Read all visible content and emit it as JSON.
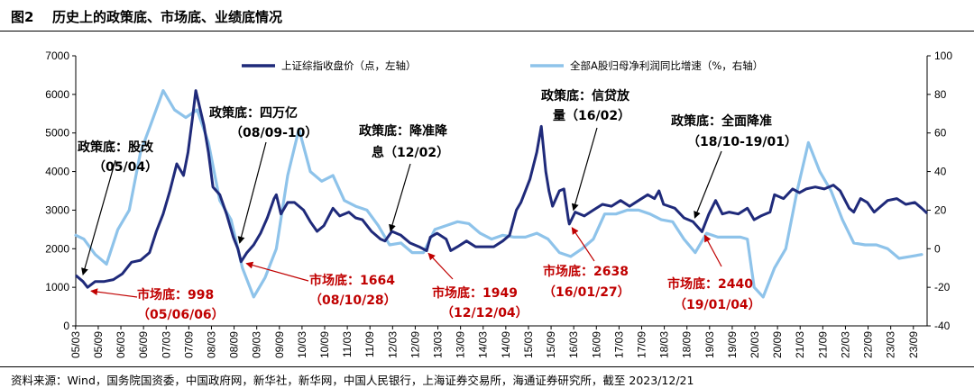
{
  "header": {
    "figure_label": "图2",
    "title": "历史上的政策底、市场底、业绩底情况"
  },
  "footer": {
    "source": "资料来源：Wind，国务院国资委，中国政府网，新华社，新华网，中国人民银行，上海证券交易所，海通证券研究所，截至 2023/12/21"
  },
  "colors": {
    "index_line": "#1f2a7a",
    "profit_line": "#8ec3ea",
    "policy_text": "#000000",
    "market_text": "#c00000"
  },
  "chart_data": {
    "type": "line",
    "left_axis": {
      "min": 0,
      "max": 7000,
      "ticks": [
        "0",
        "1000",
        "2000",
        "3000",
        "4000",
        "5000",
        "6000",
        "7000"
      ]
    },
    "right_axis": {
      "min": -40,
      "max": 100,
      "ticks": [
        "-40",
        "-20",
        "0",
        "20",
        "40",
        "60",
        "80",
        "100"
      ]
    },
    "x_ticks": [
      "05/03",
      "05/09",
      "06/03",
      "06/09",
      "07/03",
      "07/09",
      "08/03",
      "08/09",
      "09/03",
      "09/09",
      "10/03",
      "10/09",
      "11/03",
      "11/09",
      "12/03",
      "12/09",
      "13/03",
      "13/09",
      "14/03",
      "14/09",
      "15/03",
      "15/09",
      "16/03",
      "16/09",
      "17/03",
      "17/09",
      "18/03",
      "18/09",
      "19/03",
      "19/09",
      "20/03",
      "20/09",
      "21/03",
      "21/09",
      "22/03",
      "22/09",
      "23/03",
      "23/09"
    ],
    "x_start": 2005.17,
    "x_end": 2023.97,
    "series": [
      {
        "name": "上证综指收盘价（点，左轴）",
        "axis": "left",
        "points": [
          [
            2005.17,
            1310
          ],
          [
            2005.33,
            1150
          ],
          [
            2005.43,
            998
          ],
          [
            2005.6,
            1150
          ],
          [
            2005.8,
            1150
          ],
          [
            2006.0,
            1200
          ],
          [
            2006.2,
            1350
          ],
          [
            2006.4,
            1650
          ],
          [
            2006.6,
            1700
          ],
          [
            2006.8,
            1900
          ],
          [
            2006.95,
            2450
          ],
          [
            2007.1,
            2900
          ],
          [
            2007.25,
            3500
          ],
          [
            2007.4,
            4200
          ],
          [
            2007.55,
            3900
          ],
          [
            2007.65,
            4500
          ],
          [
            2007.75,
            5400
          ],
          [
            2007.82,
            6100
          ],
          [
            2007.92,
            5600
          ],
          [
            2008.0,
            5200
          ],
          [
            2008.1,
            4500
          ],
          [
            2008.2,
            3600
          ],
          [
            2008.35,
            3400
          ],
          [
            2008.5,
            2900
          ],
          [
            2008.65,
            2300
          ],
          [
            2008.75,
            2000
          ],
          [
            2008.82,
            1664
          ],
          [
            2008.95,
            1900
          ],
          [
            2009.1,
            2100
          ],
          [
            2009.25,
            2400
          ],
          [
            2009.4,
            2800
          ],
          [
            2009.55,
            3300
          ],
          [
            2009.6,
            3400
          ],
          [
            2009.7,
            2900
          ],
          [
            2009.85,
            3200
          ],
          [
            2010.0,
            3200
          ],
          [
            2010.2,
            3000
          ],
          [
            2010.35,
            2700
          ],
          [
            2010.5,
            2450
          ],
          [
            2010.65,
            2600
          ],
          [
            2010.85,
            3050
          ],
          [
            2011.0,
            2850
          ],
          [
            2011.2,
            2950
          ],
          [
            2011.35,
            2800
          ],
          [
            2011.5,
            2750
          ],
          [
            2011.7,
            2450
          ],
          [
            2011.9,
            2250
          ],
          [
            2012.0,
            2200
          ],
          [
            2012.15,
            2450
          ],
          [
            2012.35,
            2350
          ],
          [
            2012.55,
            2150
          ],
          [
            2012.75,
            2050
          ],
          [
            2012.92,
            1949
          ],
          [
            2013.0,
            2300
          ],
          [
            2013.15,
            2400
          ],
          [
            2013.35,
            2250
          ],
          [
            2013.45,
            1950
          ],
          [
            2013.6,
            2050
          ],
          [
            2013.8,
            2200
          ],
          [
            2014.0,
            2050
          ],
          [
            2014.2,
            2050
          ],
          [
            2014.4,
            2050
          ],
          [
            2014.6,
            2200
          ],
          [
            2014.75,
            2350
          ],
          [
            2014.9,
            3000
          ],
          [
            2015.0,
            3200
          ],
          [
            2015.2,
            3800
          ],
          [
            2015.35,
            4500
          ],
          [
            2015.45,
            5170
          ],
          [
            2015.55,
            4000
          ],
          [
            2015.62,
            3500
          ],
          [
            2015.7,
            3100
          ],
          [
            2015.85,
            3500
          ],
          [
            2015.95,
            3550
          ],
          [
            2016.05,
            2750
          ],
          [
            2016.07,
            2638
          ],
          [
            2016.2,
            2950
          ],
          [
            2016.4,
            2850
          ],
          [
            2016.6,
            3000
          ],
          [
            2016.8,
            3150
          ],
          [
            2017.0,
            3100
          ],
          [
            2017.2,
            3250
          ],
          [
            2017.4,
            3100
          ],
          [
            2017.6,
            3250
          ],
          [
            2017.8,
            3400
          ],
          [
            2017.95,
            3300
          ],
          [
            2018.05,
            3500
          ],
          [
            2018.15,
            3150
          ],
          [
            2018.4,
            3050
          ],
          [
            2018.6,
            2800
          ],
          [
            2018.8,
            2700
          ],
          [
            2019.0,
            2440
          ],
          [
            2019.15,
            2900
          ],
          [
            2019.3,
            3250
          ],
          [
            2019.45,
            2900
          ],
          [
            2019.6,
            2950
          ],
          [
            2019.8,
            2900
          ],
          [
            2020.0,
            3050
          ],
          [
            2020.15,
            2750
          ],
          [
            2020.3,
            2850
          ],
          [
            2020.5,
            2950
          ],
          [
            2020.6,
            3400
          ],
          [
            2020.8,
            3300
          ],
          [
            2021.0,
            3550
          ],
          [
            2021.15,
            3450
          ],
          [
            2021.3,
            3550
          ],
          [
            2021.5,
            3600
          ],
          [
            2021.7,
            3550
          ],
          [
            2021.9,
            3650
          ],
          [
            2022.05,
            3500
          ],
          [
            2022.25,
            3050
          ],
          [
            2022.35,
            2950
          ],
          [
            2022.5,
            3300
          ],
          [
            2022.65,
            3200
          ],
          [
            2022.8,
            2950
          ],
          [
            2022.95,
            3100
          ],
          [
            2023.1,
            3250
          ],
          [
            2023.3,
            3300
          ],
          [
            2023.5,
            3150
          ],
          [
            2023.7,
            3200
          ],
          [
            2023.85,
            3050
          ],
          [
            2023.97,
            2920
          ]
        ]
      },
      {
        "name": "全部A股归母净利润同比增速（%，右轴）",
        "axis": "right",
        "points": [
          [
            2005.17,
            7
          ],
          [
            2005.35,
            5
          ],
          [
            2005.6,
            -3
          ],
          [
            2005.85,
            -8
          ],
          [
            2006.1,
            10
          ],
          [
            2006.35,
            20
          ],
          [
            2006.6,
            50
          ],
          [
            2006.85,
            66
          ],
          [
            2007.1,
            82
          ],
          [
            2007.35,
            72
          ],
          [
            2007.6,
            68
          ],
          [
            2007.85,
            72
          ],
          [
            2008.1,
            55
          ],
          [
            2008.35,
            25
          ],
          [
            2008.6,
            15
          ],
          [
            2008.85,
            -10
          ],
          [
            2009.1,
            -25
          ],
          [
            2009.35,
            -15
          ],
          [
            2009.6,
            0
          ],
          [
            2009.85,
            38
          ],
          [
            2010.1,
            62
          ],
          [
            2010.35,
            40
          ],
          [
            2010.6,
            35
          ],
          [
            2010.85,
            38
          ],
          [
            2011.1,
            25
          ],
          [
            2011.35,
            22
          ],
          [
            2011.6,
            20
          ],
          [
            2011.85,
            12
          ],
          [
            2012.1,
            2
          ],
          [
            2012.35,
            3
          ],
          [
            2012.6,
            -2
          ],
          [
            2012.85,
            -2
          ],
          [
            2013.1,
            10
          ],
          [
            2013.35,
            12
          ],
          [
            2013.6,
            14
          ],
          [
            2013.85,
            13
          ],
          [
            2014.1,
            8
          ],
          [
            2014.35,
            5
          ],
          [
            2014.6,
            7
          ],
          [
            2014.85,
            6
          ],
          [
            2015.1,
            6
          ],
          [
            2015.35,
            8
          ],
          [
            2015.6,
            5
          ],
          [
            2015.85,
            -2
          ],
          [
            2016.1,
            -4
          ],
          [
            2016.35,
            0
          ],
          [
            2016.6,
            5
          ],
          [
            2016.85,
            18
          ],
          [
            2017.1,
            18
          ],
          [
            2017.35,
            20
          ],
          [
            2017.6,
            20
          ],
          [
            2017.85,
            18
          ],
          [
            2018.1,
            15
          ],
          [
            2018.35,
            14
          ],
          [
            2018.6,
            5
          ],
          [
            2018.85,
            -2
          ],
          [
            2019.1,
            8
          ],
          [
            2019.35,
            6
          ],
          [
            2019.6,
            6
          ],
          [
            2019.85,
            6
          ],
          [
            2020.0,
            5
          ],
          [
            2020.15,
            -20
          ],
          [
            2020.35,
            -25
          ],
          [
            2020.6,
            -10
          ],
          [
            2020.85,
            0
          ],
          [
            2021.1,
            30
          ],
          [
            2021.35,
            55
          ],
          [
            2021.6,
            40
          ],
          [
            2021.85,
            30
          ],
          [
            2022.1,
            15
          ],
          [
            2022.35,
            3
          ],
          [
            2022.6,
            2
          ],
          [
            2022.85,
            2
          ],
          [
            2023.1,
            0
          ],
          [
            2023.35,
            -5
          ],
          [
            2023.6,
            -4
          ],
          [
            2023.85,
            -3
          ]
        ]
      }
    ],
    "legend": {
      "placement": "top"
    },
    "policy_bottoms": [
      {
        "label_lines": [
          "政策底：股改",
          "（05/04）"
        ],
        "x": 2005.33
      },
      {
        "label_lines": [
          "政策底：四万亿",
          "（08/09-10）"
        ],
        "x": 2008.75
      },
      {
        "label_lines": [
          "政策底：降准降",
          "息（12/02）"
        ],
        "x": 2012.12
      },
      {
        "label_lines": [
          "政策底：信贷放",
          "量（16/02）"
        ],
        "x": 2016.12
      },
      {
        "label_lines": [
          "政策底：全面降准",
          "（18/10-19/01）"
        ],
        "x": 2018.8
      }
    ],
    "market_bottoms": [
      {
        "label_lines": [
          "市场底：998",
          "（05/06/06）"
        ],
        "x": 2005.43,
        "value": 998
      },
      {
        "label_lines": [
          "市场底：1664",
          "（08/10/28）"
        ],
        "x": 2008.82,
        "value": 1664
      },
      {
        "label_lines": [
          "市场底：1949",
          "（12/12/04）"
        ],
        "x": 2012.92,
        "value": 1949
      },
      {
        "label_lines": [
          "市场底：2638",
          "（16/01/27）"
        ],
        "x": 2016.07,
        "value": 2638
      },
      {
        "label_lines": [
          "市场底：2440",
          "（19/01/04）"
        ],
        "x": 2019.0,
        "value": 2440
      }
    ]
  }
}
